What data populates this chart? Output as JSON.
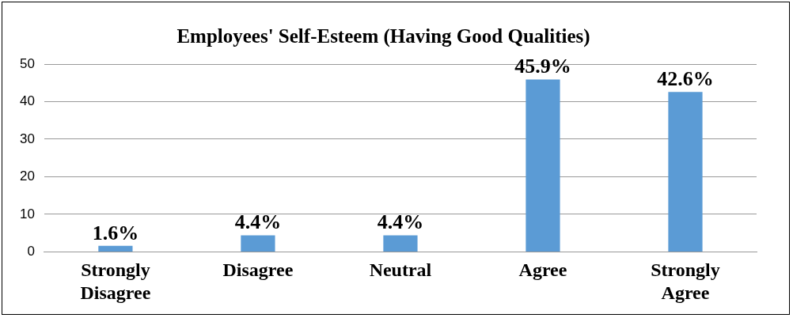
{
  "chart_data": {
    "type": "bar",
    "title": "Employees' Self-Esteem (Having Good Qualities)",
    "categories": [
      "Strongly Disagree",
      "Disagree",
      "Neutral",
      "Agree",
      "Strongly Agree"
    ],
    "values": [
      1.6,
      4.4,
      4.4,
      45.9,
      42.6
    ],
    "color": "#5b9bd5",
    "value_labels": [
      "1.6%",
      "4.4%",
      "4.4%",
      "45.9%",
      "42.6%"
    ],
    "ylim": [
      0,
      50
    ],
    "yticks": [
      0,
      10,
      20,
      30,
      40,
      50
    ],
    "grid": "y",
    "legend": false
  }
}
